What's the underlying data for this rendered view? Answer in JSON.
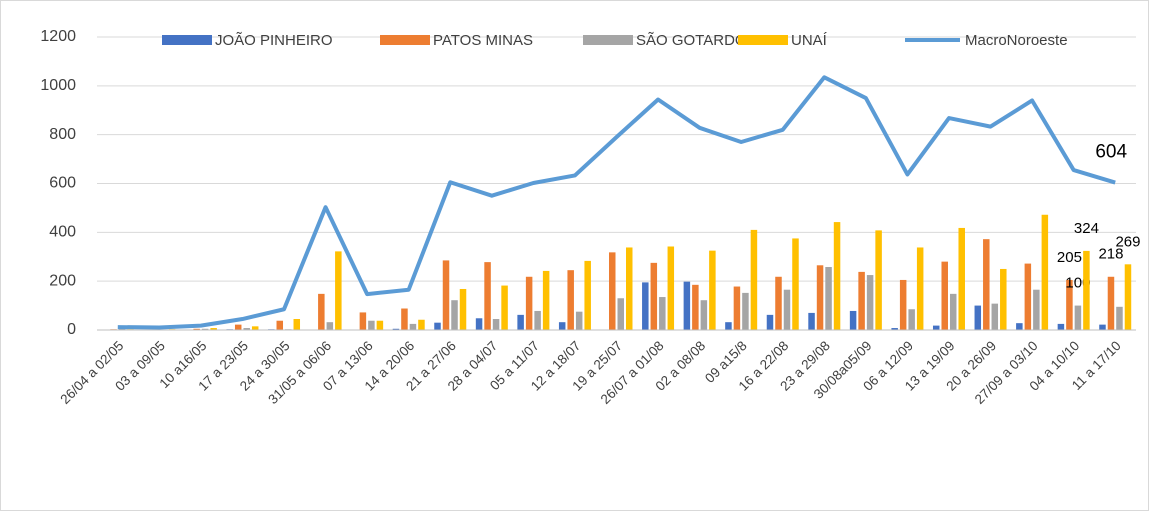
{
  "chart_data": {
    "type": "bar",
    "categories": [
      "26/04 a 02/05",
      "03 a 09/05",
      "10 a16/05",
      "17 a 23/05",
      "24 a 30/05",
      "31/05 a 06/06",
      "07 a 13/06",
      "14 a 20/06",
      "21 a 27/06",
      "28 a 04/07",
      "05 a 11/07",
      "12 a 18/07",
      "19 a 25/07",
      "26/07 a 01/08",
      "02 a 08/08",
      "09 a15/8",
      "16 a 22/08",
      "23 a 29/08",
      "30/08a05/09",
      "06 a 12/09",
      "13 a 19/09",
      "20 a 26/09",
      "27/09 a 03/10",
      "04 a 10/10",
      "11 a 17/10"
    ],
    "series": [
      {
        "name": "JOÃO PINHEIRO",
        "type": "bar",
        "color": "#4472c4",
        "values": [
          0,
          0,
          2,
          3,
          3,
          0,
          0,
          5,
          30,
          48,
          62,
          32,
          0,
          195,
          198,
          32,
          62,
          70,
          78,
          8,
          18,
          100,
          28,
          25,
          22
        ]
      },
      {
        "name": "PATOS MINAS",
        "type": "bar",
        "color": "#ed7d31",
        "values": [
          3,
          2,
          5,
          22,
          38,
          148,
          72,
          88,
          285,
          278,
          218,
          245,
          318,
          275,
          185,
          178,
          218,
          265,
          238,
          205,
          280,
          372,
          272,
          205,
          218
        ],
        "value_labels": [
          null,
          null,
          null,
          null,
          null,
          null,
          null,
          null,
          null,
          null,
          null,
          null,
          null,
          null,
          null,
          null,
          null,
          null,
          null,
          null,
          null,
          null,
          null,
          "205",
          "218"
        ]
      },
      {
        "name": "SÃO GOTARDO",
        "type": "bar",
        "color": "#a5a5a5",
        "values": [
          5,
          2,
          5,
          8,
          3,
          32,
          38,
          25,
          122,
          45,
          78,
          75,
          130,
          135,
          122,
          152,
          165,
          258,
          225,
          85,
          148,
          108,
          165,
          100,
          95
        ],
        "value_labels": [
          null,
          null,
          null,
          null,
          null,
          null,
          null,
          null,
          null,
          null,
          null,
          null,
          null,
          null,
          null,
          null,
          null,
          null,
          null,
          null,
          null,
          null,
          null,
          "100",
          null
        ]
      },
      {
        "name": "UNAÍ",
        "type": "bar",
        "color": "#ffc000",
        "values": [
          3,
          3,
          8,
          15,
          45,
          322,
          38,
          42,
          168,
          182,
          242,
          283,
          338,
          342,
          325,
          410,
          375,
          442,
          408,
          338,
          418,
          250,
          472,
          324,
          269
        ],
        "value_labels": [
          null,
          null,
          null,
          null,
          null,
          null,
          null,
          null,
          null,
          null,
          null,
          null,
          null,
          null,
          null,
          null,
          null,
          null,
          null,
          null,
          null,
          null,
          null,
          "324",
          "269"
        ]
      },
      {
        "name": "MacroNoroeste",
        "type": "line",
        "color": "#5b9bd5",
        "values": [
          12,
          10,
          18,
          45,
          85,
          503,
          147,
          165,
          605,
          550,
          602,
          633,
          790,
          944,
          828,
          770,
          820,
          1035,
          950,
          637,
          868,
          833,
          940,
          655,
          604
        ],
        "value_labels": [
          null,
          null,
          null,
          null,
          null,
          null,
          null,
          null,
          null,
          null,
          null,
          null,
          null,
          null,
          null,
          null,
          null,
          null,
          null,
          null,
          null,
          null,
          null,
          null,
          "604"
        ]
      }
    ],
    "ylim": [
      0,
      1200
    ],
    "yticks": [
      0,
      200,
      400,
      600,
      800,
      1000,
      1200
    ],
    "grid": true,
    "legend": "top"
  }
}
